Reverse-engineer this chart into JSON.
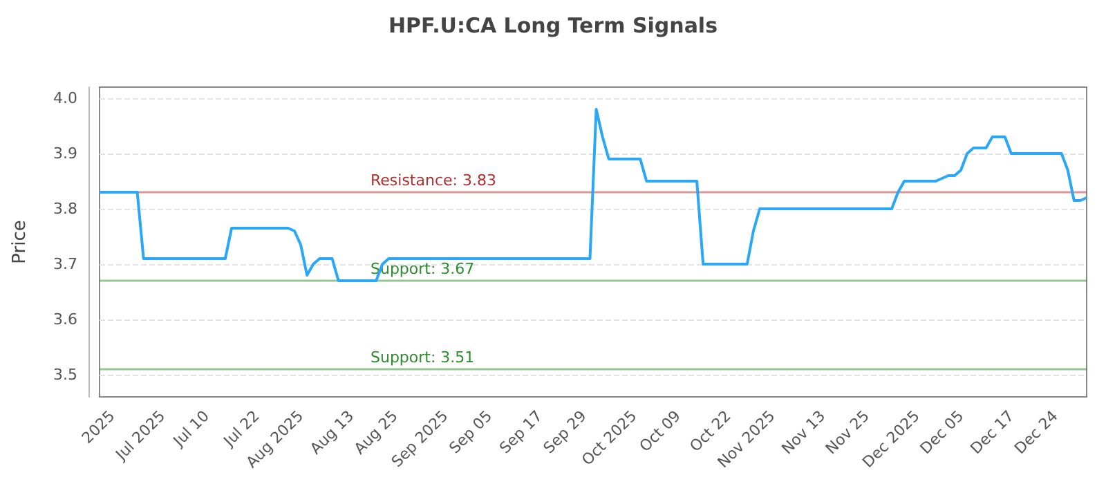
{
  "chart_data": {
    "type": "line",
    "title": "HPF.U:CA Long Term Signals",
    "ylabel": "Price",
    "categories": [
      null,
      null,
      "2025",
      null,
      null,
      null,
      null,
      null,
      null,
      null,
      "Jul 2025",
      null,
      null,
      null,
      null,
      null,
      null,
      "Jul 10",
      null,
      null,
      null,
      null,
      null,
      null,
      null,
      "Jul 22",
      null,
      null,
      null,
      null,
      null,
      null,
      "Aug 2025",
      null,
      null,
      null,
      null,
      null,
      null,
      null,
      "Aug 13",
      null,
      null,
      null,
      null,
      null,
      null,
      "Aug 25",
      null,
      null,
      null,
      null,
      null,
      null,
      null,
      "Sep 2025",
      null,
      null,
      null,
      null,
      null,
      null,
      "Sep 05",
      null,
      null,
      null,
      null,
      null,
      null,
      null,
      "Sep 17",
      null,
      null,
      null,
      null,
      null,
      null,
      "Sep 29",
      null,
      null,
      null,
      null,
      null,
      null,
      null,
      "Oct 2025",
      null,
      null,
      null,
      null,
      null,
      null,
      "Oct 09",
      null,
      null,
      null,
      null,
      null,
      null,
      null,
      "Oct 22",
      null,
      null,
      null,
      null,
      null,
      null,
      "Nov 2025",
      null,
      null,
      null,
      null,
      null,
      null,
      null,
      "Nov 13",
      null,
      null,
      null,
      null,
      null,
      null,
      "Nov 25",
      null,
      null,
      null,
      null,
      null,
      null,
      null,
      "Dec 2025",
      null,
      null,
      null,
      null,
      null,
      null,
      "Dec 05",
      null,
      null,
      null,
      null,
      null,
      null,
      null,
      "Dec 17",
      null,
      null,
      null,
      null,
      null,
      null,
      "Dec 24",
      null,
      null,
      null,
      null,
      null
    ],
    "series": [
      {
        "color": "#2aa8f7",
        "values": [
          3.83,
          3.83,
          3.83,
          3.83,
          3.83,
          3.83,
          3.83,
          3.71,
          3.71,
          3.71,
          3.71,
          3.71,
          3.71,
          3.71,
          3.71,
          3.71,
          3.71,
          3.71,
          3.71,
          3.71,
          3.71,
          3.765,
          3.765,
          3.765,
          3.765,
          3.765,
          3.765,
          3.765,
          3.765,
          3.765,
          3.765,
          3.76,
          3.735,
          3.68,
          3.7,
          3.71,
          3.71,
          3.71,
          3.67,
          3.67,
          3.67,
          3.67,
          3.67,
          3.67,
          3.67,
          3.7,
          3.71,
          3.71,
          3.71,
          3.71,
          3.71,
          3.71,
          3.71,
          3.71,
          3.71,
          3.71,
          3.71,
          3.71,
          3.71,
          3.71,
          3.71,
          3.71,
          3.71,
          3.71,
          3.71,
          3.71,
          3.71,
          3.71,
          3.71,
          3.71,
          3.71,
          3.71,
          3.71,
          3.71,
          3.71,
          3.71,
          3.71,
          3.71,
          3.71,
          3.98,
          3.93,
          3.89,
          3.89,
          3.89,
          3.89,
          3.89,
          3.89,
          3.85,
          3.85,
          3.85,
          3.85,
          3.85,
          3.85,
          3.85,
          3.85,
          3.85,
          3.7,
          3.7,
          3.7,
          3.7,
          3.7,
          3.7,
          3.7,
          3.7,
          3.76,
          3.8,
          3.8,
          3.8,
          3.8,
          3.8,
          3.8,
          3.8,
          3.8,
          3.8,
          3.8,
          3.8,
          3.8,
          3.8,
          3.8,
          3.8,
          3.8,
          3.8,
          3.8,
          3.8,
          3.8,
          3.8,
          3.8,
          3.83,
          3.85,
          3.85,
          3.85,
          3.85,
          3.85,
          3.85,
          3.855,
          3.86,
          3.86,
          3.87,
          3.9,
          3.91,
          3.91,
          3.91,
          3.93,
          3.93,
          3.93,
          3.9,
          3.9,
          3.9,
          3.9,
          3.9,
          3.9,
          3.9,
          3.9,
          3.9,
          3.87,
          3.815,
          3.815,
          3.82
        ]
      }
    ],
    "ylim": [
      3.46,
      4.02
    ],
    "yticks": [
      3.5,
      3.6,
      3.7,
      3.8,
      3.9,
      {
        "value": 4,
        "label": "4.0"
      }
    ],
    "ref_lines": [
      {
        "axis": "y",
        "value": 3.83,
        "label": "Resistance: 3.83",
        "color": "#b03030"
      },
      {
        "axis": "y",
        "value": 3.67,
        "label": "Support: 3.67",
        "color": "#2e8b2e"
      },
      {
        "axis": "y",
        "value": 3.51,
        "label": "Support: 3.51",
        "color": "#2e8b2e"
      }
    ],
    "grid": "y",
    "marker": "none",
    "line_style": "solid"
  }
}
